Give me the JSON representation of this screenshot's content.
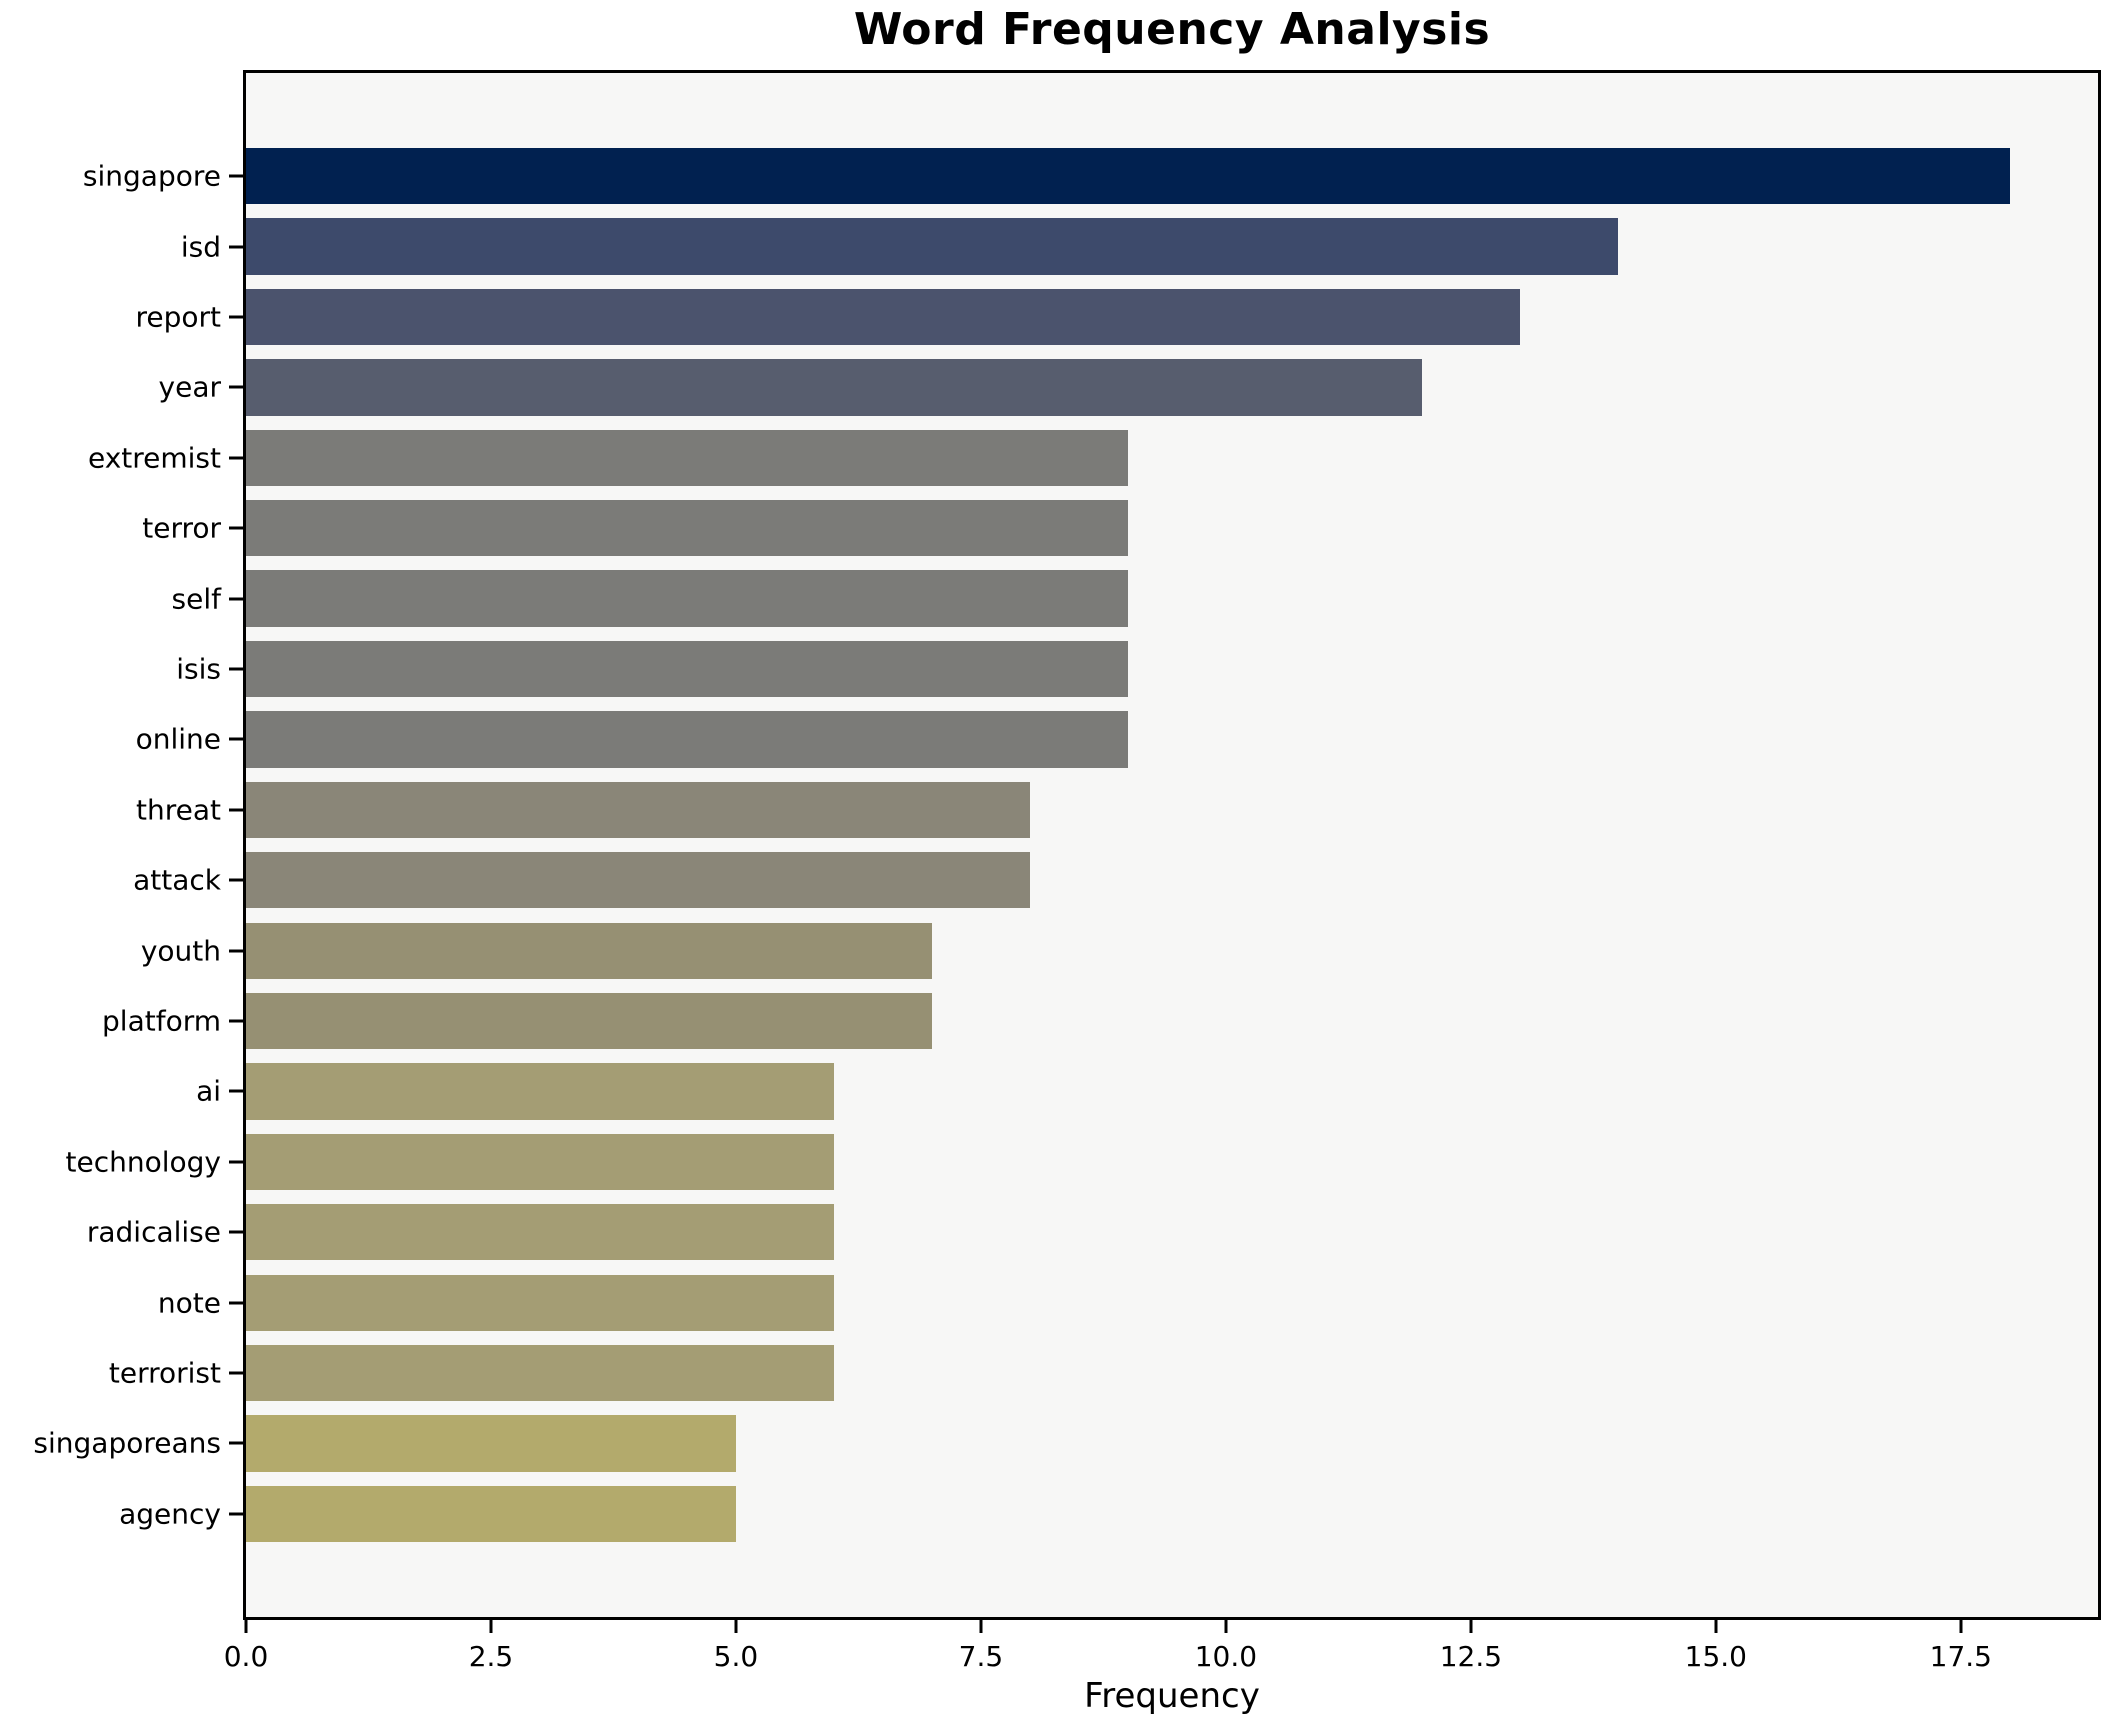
{
  "chart_data": {
    "type": "bar",
    "orientation": "horizontal",
    "title": "Word Frequency Analysis",
    "xlabel": "Frequency",
    "ylabel": "",
    "categories": [
      "singapore",
      "isd",
      "report",
      "year",
      "extremist",
      "terror",
      "self",
      "isis",
      "online",
      "threat",
      "attack",
      "youth",
      "platform",
      "ai",
      "technology",
      "radicalise",
      "note",
      "terrorist",
      "singaporeans",
      "agency"
    ],
    "values": [
      18,
      14,
      13,
      12,
      9,
      9,
      9,
      9,
      9,
      8,
      8,
      7,
      7,
      6,
      6,
      6,
      6,
      6,
      5,
      5
    ],
    "bar_colors": [
      "#012150",
      "#3d4a6b",
      "#4b536d",
      "#575d6e",
      "#7b7b78",
      "#7b7b78",
      "#7b7b78",
      "#7b7b78",
      "#7b7b78",
      "#8a8678",
      "#8a8678",
      "#969073",
      "#969073",
      "#a49d74",
      "#a49d74",
      "#a49d74",
      "#a49d74",
      "#a49d74",
      "#b3aa6c",
      "#b3aa6c"
    ],
    "xlim": [
      0,
      18.9
    ],
    "xticks": [
      0,
      2.5,
      5,
      7.5,
      10,
      12.5,
      15,
      17.5
    ],
    "xtick_labels": [
      "0.0",
      "2.5",
      "5.0",
      "7.5",
      "10.0",
      "12.5",
      "15.0",
      "17.5"
    ],
    "grid": false,
    "legend": "none",
    "plot_background": "#f7f7f6",
    "figure_background": "#ffffff",
    "spine_color": "#000000",
    "text_color": "#000000"
  }
}
